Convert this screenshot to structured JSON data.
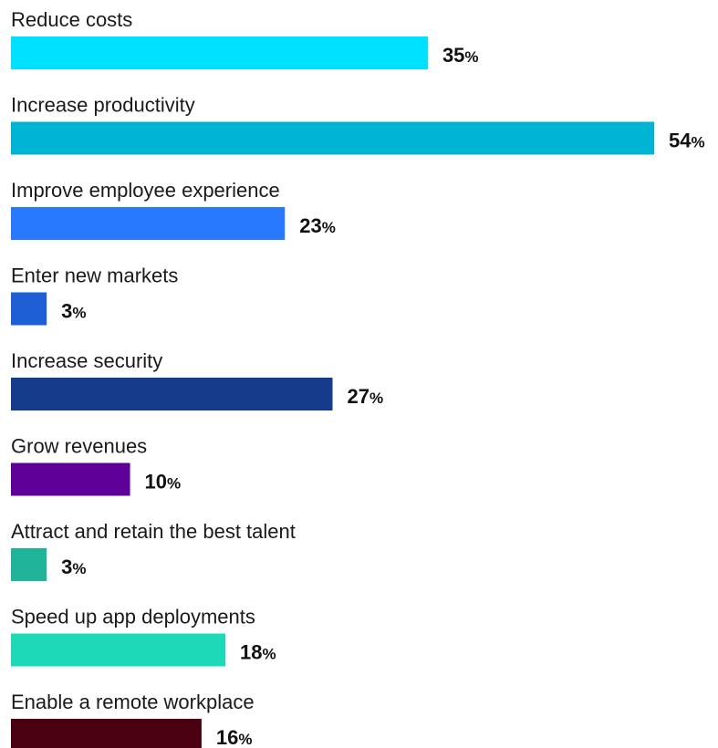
{
  "chart_data": {
    "type": "bar",
    "orientation": "horizontal",
    "title": "",
    "xlabel": "",
    "ylabel": "",
    "xlim": [
      0,
      54
    ],
    "grid": false,
    "value_suffix": "%",
    "categories": [
      "Reduce costs",
      "Increase productivity",
      "Improve employee experience",
      "Enter new markets",
      "Increase security",
      "Grow revenues",
      "Attract and retain the best talent",
      "Speed up app deployments",
      "Enable a remote workplace"
    ],
    "values": [
      35,
      54,
      23,
      3,
      27,
      10,
      3,
      18,
      16
    ],
    "colors": [
      "#00E1FF",
      "#00B5D4",
      "#2979FF",
      "#1E5FD6",
      "#143C8A",
      "#5F0099",
      "#1FB39A",
      "#1ED9B8",
      "#4A0010"
    ]
  }
}
